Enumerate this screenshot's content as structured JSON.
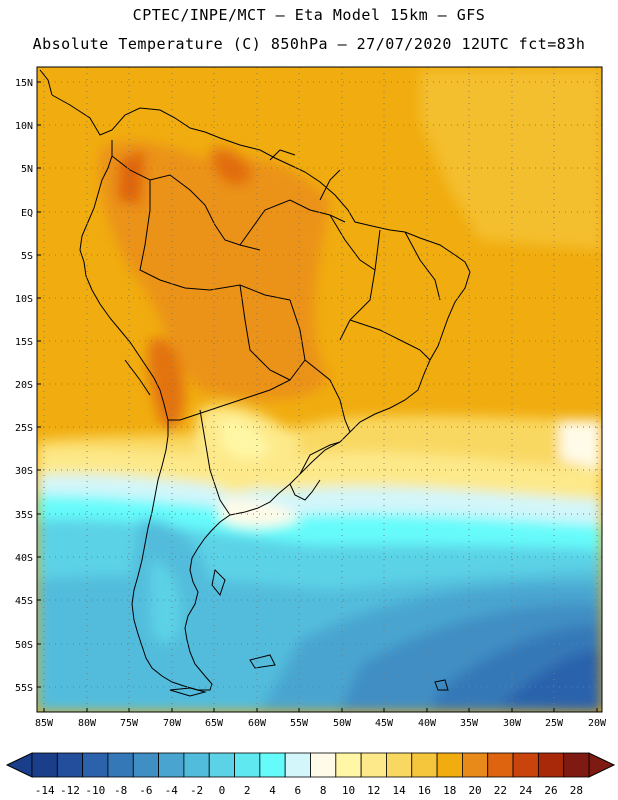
{
  "header": {
    "line1": "CPTEC/INPE/MCT – Eta Model 15km – GFS",
    "line2": "Absolute Temperature (C) 850hPa – 27/07/2020 12UTC fct=83h"
  },
  "map": {
    "region": "South America",
    "latitude_labels": [
      "15N",
      "10N",
      "5N",
      "EQ",
      "5S",
      "10S",
      "15S",
      "20S",
      "25S",
      "30S",
      "35S",
      "40S",
      "45S",
      "50S",
      "55S"
    ],
    "longitude_labels": [
      "85W",
      "80W",
      "75W",
      "70W",
      "65W",
      "60W",
      "55W",
      "50W",
      "45W",
      "40W",
      "35W",
      "30W",
      "25W",
      "20W"
    ]
  },
  "legend": {
    "labels": [
      "-14",
      "-12",
      "-10",
      "-8",
      "-6",
      "-4",
      "-2",
      "0",
      "2",
      "4",
      "6",
      "8",
      "10",
      "12",
      "14",
      "16",
      "18",
      "20",
      "22",
      "24",
      "26",
      "28"
    ],
    "colors": [
      "#1a3e8a",
      "#234e9c",
      "#2c62ac",
      "#3578b8",
      "#3f8ec4",
      "#49a5d0",
      "#52bcdc",
      "#5bd2e6",
      "#5fe8f0",
      "#66fbfb",
      "#d2f6fa",
      "#fffbe8",
      "#fff7a6",
      "#fde98a",
      "#f9d862",
      "#f5c63c",
      "#f1ad10",
      "#e88a1a",
      "#de6410",
      "#c9440c",
      "#a8280a",
      "#7e1a12"
    ]
  }
}
